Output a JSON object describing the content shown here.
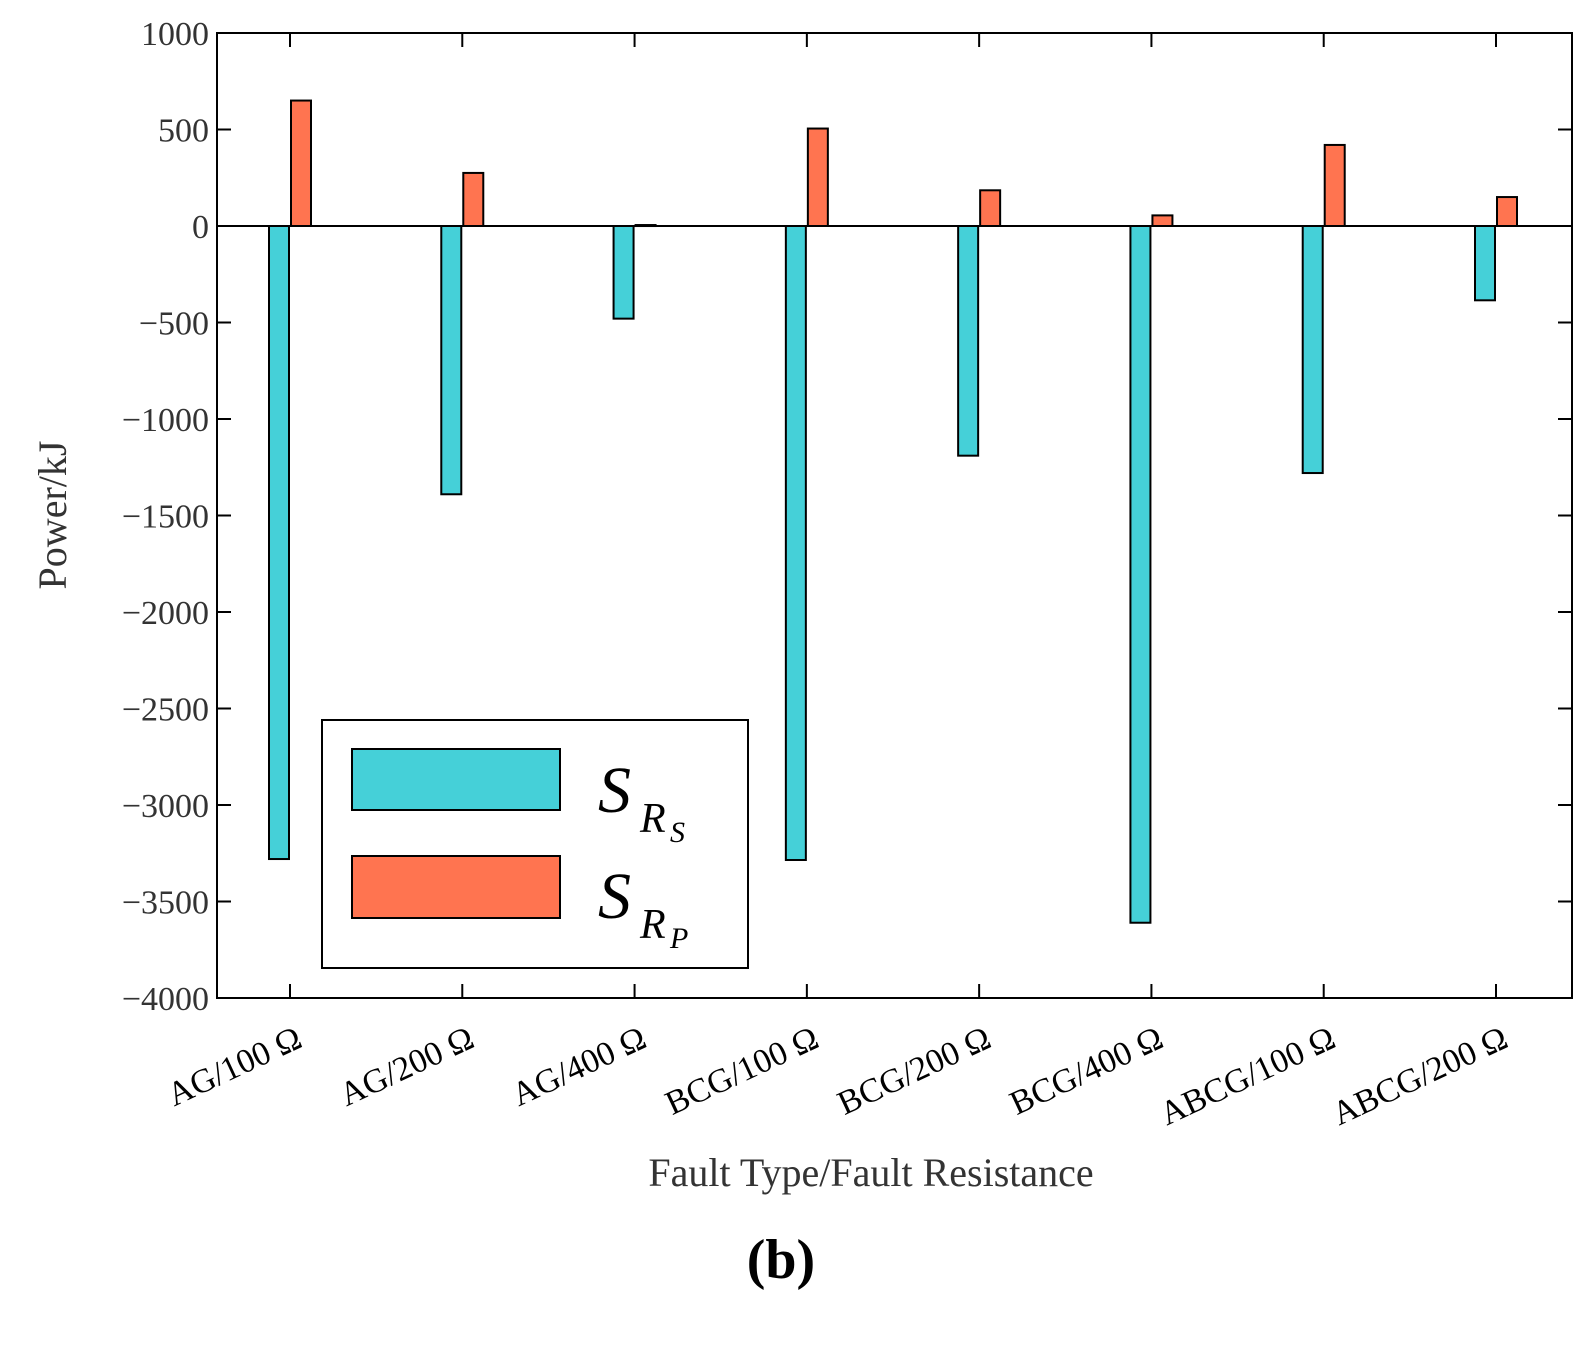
{
  "chart_data": {
    "type": "bar",
    "title": "",
    "xlabel": "Fault Type/Fault Resistance",
    "ylabel": "Power/kJ",
    "panel_label": "(b)",
    "ylim": [
      -4000,
      1000
    ],
    "yticks": [
      1000,
      500,
      0,
      -500,
      -1000,
      -1500,
      -2000,
      -2500,
      -3000,
      -3500,
      -4000
    ],
    "ytick_labels": [
      "1000",
      "500",
      "0",
      "−500",
      "−1000",
      "−1500",
      "−2000",
      "−2500",
      "−3000",
      "−3500",
      "−4000"
    ],
    "categories": [
      "AG/100 Ω",
      "AG/200 Ω",
      "AG/400 Ω",
      "BCG/100 Ω",
      "BCG/200 Ω",
      "BCG/400 Ω",
      "ABCG/100 Ω",
      "ABCG/200 Ω"
    ],
    "series": [
      {
        "name": "S_RS",
        "legend_main": "S",
        "legend_sub": "R",
        "legend_subsub": "S",
        "color": "#45D0D8",
        "values": [
          -3280,
          -1390,
          -480,
          -3285,
          -1190,
          -3610,
          -1280,
          -385
        ]
      },
      {
        "name": "S_RP",
        "legend_main": "S",
        "legend_sub": "R",
        "legend_subsub": "P",
        "color": "#FF7450",
        "values": [
          650,
          275,
          5,
          505,
          185,
          55,
          420,
          150
        ]
      }
    ],
    "legend_position": "lower-left",
    "grid": false
  }
}
